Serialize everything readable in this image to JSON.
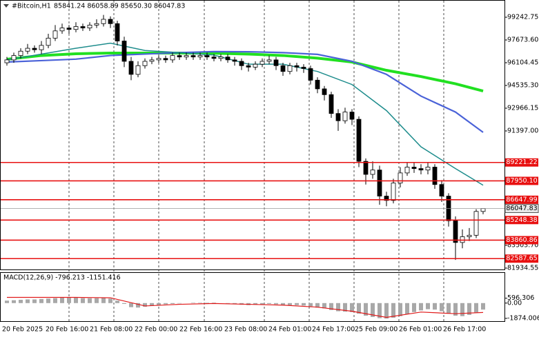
{
  "chart_data": {
    "type": "candlestick",
    "title": "#Bitcoin,H1",
    "header_ohlc": "85841.24 86058.89 85650.30 86047.83",
    "x_labels": [
      "20 Feb 2025",
      "20 Feb 16:00",
      "21 Feb 08:00",
      "22 Feb 00:00",
      "22 Feb 16:00",
      "23 Feb 08:00",
      "24 Feb 01:00",
      "24 Feb 17:00",
      "25 Feb 09:00",
      "26 Feb 01:00",
      "26 Feb 17:00"
    ],
    "open": [
      96100,
      96300,
      96600,
      96900,
      97100,
      97000,
      97300,
      97800,
      98300,
      98500,
      98400,
      98600,
      98500,
      98700,
      98800,
      99100,
      98800,
      97600,
      96200,
      95300,
      95900,
      96200,
      96300,
      96400,
      96300,
      96600,
      96500,
      96600,
      96500,
      96600,
      96500,
      96400,
      96500,
      96300,
      96200,
      95900,
      95800,
      96000,
      96200,
      96300,
      95900,
      95500,
      95900,
      95800,
      95700,
      94900,
      94300,
      93900,
      92600,
      92100,
      92700,
      92200,
      89300,
      88400,
      88700,
      86900,
      86600,
      87800,
      88500,
      88900,
      88800,
      88700,
      88900,
      87700,
      86900,
      85200,
      83700,
      84100,
      84200,
      85841.24
    ],
    "high": [
      96500,
      96800,
      97100,
      97400,
      97300,
      97600,
      98100,
      98700,
      98800,
      98700,
      98900,
      98800,
      98900,
      99100,
      99400,
      99300,
      99000,
      97900,
      96500,
      96200,
      96400,
      96500,
      96600,
      96600,
      96800,
      96800,
      96800,
      96800,
      96800,
      96800,
      96700,
      96700,
      96700,
      96500,
      96400,
      96100,
      96200,
      96400,
      96600,
      96500,
      96100,
      96100,
      96100,
      96000,
      95900,
      95100,
      94500,
      94100,
      92900,
      93000,
      92900,
      92400,
      89500,
      89300,
      89000,
      87200,
      88100,
      88900,
      89200,
      89200,
      89100,
      89200,
      89100,
      88000,
      87100,
      85500,
      84600,
      84700,
      86000,
      86058.89
    ],
    "low": [
      95900,
      96100,
      96400,
      96700,
      96800,
      96700,
      97100,
      97600,
      98100,
      98100,
      98200,
      98300,
      98300,
      98500,
      98600,
      98500,
      97300,
      95800,
      94900,
      95100,
      95700,
      96000,
      96100,
      96100,
      96100,
      96300,
      96300,
      96300,
      96300,
      96300,
      96200,
      96200,
      96100,
      95900,
      95600,
      95500,
      95600,
      95800,
      96000,
      95600,
      95200,
      95300,
      95500,
      95400,
      94600,
      94000,
      93500,
      92300,
      91400,
      91900,
      91800,
      88900,
      87700,
      88100,
      86300,
      86200,
      86400,
      87500,
      88300,
      88500,
      88400,
      88400,
      87400,
      86500,
      84800,
      82500,
      83300,
      83800,
      84000,
      85650.3
    ],
    "close": [
      96300,
      96600,
      96900,
      97100,
      97000,
      97300,
      97800,
      98300,
      98500,
      98400,
      98600,
      98500,
      98700,
      98800,
      99100,
      98800,
      97600,
      96200,
      95300,
      95900,
      96200,
      96300,
      96400,
      96300,
      96600,
      96500,
      96600,
      96500,
      96600,
      96500,
      96400,
      96500,
      96300,
      96200,
      95900,
      95800,
      96000,
      96200,
      96300,
      95900,
      95500,
      95900,
      95800,
      95700,
      94900,
      94300,
      93900,
      92600,
      92100,
      92700,
      92200,
      89300,
      88400,
      88700,
      86900,
      86600,
      87800,
      88500,
      88900,
      88800,
      88700,
      88900,
      87700,
      86900,
      85200,
      83700,
      84100,
      84200,
      85841.24,
      86047.83
    ],
    "ylim": [
      81791,
      100431
    ],
    "yticks": [
      99242.75,
      {
        "value": 97673.6,
        "label": "97673.60"
      },
      96104.45,
      {
        "value": 94535.3,
        "label": "94535.30"
      },
      92966.15,
      {
        "value": 91397,
        "label": "91397.00"
      },
      {
        "value": 83503.7,
        "label": "83503.70"
      },
      81934.55
    ],
    "levels": {
      "color": "#e81010",
      "values": [
        89221.22,
        87950.1,
        86647.99,
        85248.38,
        83860.86,
        82587.65
      ],
      "value_labels": [
        "89221.22",
        "87950.10",
        "86647.99",
        "85248.38",
        "83860.86",
        "82587.65"
      ]
    },
    "ma_x": [
      0,
      5,
      10,
      15,
      20,
      25,
      30,
      35,
      40,
      45,
      50,
      55,
      60,
      65,
      69
    ],
    "moving_averages": [
      {
        "color": "#21e021",
        "width": 4,
        "values": [
          96340,
          96600,
          96720,
          96770,
          96770,
          96770,
          96760,
          96700,
          96600,
          96420,
          96150,
          95580,
          95150,
          94650,
          94150
        ]
      },
      {
        "color": "#4a62d8",
        "width": 2.2,
        "values": [
          96150,
          96250,
          96350,
          96600,
          96700,
          96800,
          96870,
          96860,
          96800,
          96680,
          96200,
          95300,
          93800,
          92700,
          91300
        ]
      },
      {
        "color": "#1d8c8c",
        "width": 1.5,
        "values": [
          96300,
          96700,
          97100,
          97450,
          96950,
          96800,
          96630,
          96000,
          96000,
          95500,
          94600,
          92800,
          90300,
          88800,
          87650
        ]
      }
    ],
    "macd": {
      "label": "MACD(12,26,9) -796.213 -1151.416",
      "ylim": [
        -2300,
        3700
      ],
      "yticks": [
        596.306,
        {
          "value": 0,
          "label": "0.00"
        },
        -1874.006
      ],
      "histogram_color": "#a8a8a8",
      "histogram": [
        300,
        350,
        400,
        450,
        450,
        500,
        550,
        600,
        650,
        650,
        650,
        600,
        600,
        600,
        650,
        550,
        300,
        -100,
        -500,
        -550,
        -450,
        -350,
        -250,
        -150,
        -100,
        -50,
        0,
        50,
        50,
        50,
        50,
        0,
        -50,
        -100,
        -200,
        -250,
        -200,
        -150,
        -100,
        -150,
        -250,
        -250,
        -250,
        -300,
        -400,
        -550,
        -650,
        -850,
        -1000,
        -1050,
        -1100,
        -1300,
        -1550,
        -1700,
        -1850,
        -1900,
        -1800,
        -1600,
        -1350,
        -1100,
        -900,
        -750,
        -800,
        -1000,
        -1300,
        -1550,
        -1600,
        -1450,
        -1150,
        -796.213
      ],
      "signal": {
        "color": "#e01818",
        "values": [
          700,
          700,
          700,
          650,
          -350,
          -150,
          -50,
          -150,
          -250,
          -500,
          -1000,
          -1750,
          -1100,
          -1300,
          -1151.416
        ]
      }
    }
  }
}
